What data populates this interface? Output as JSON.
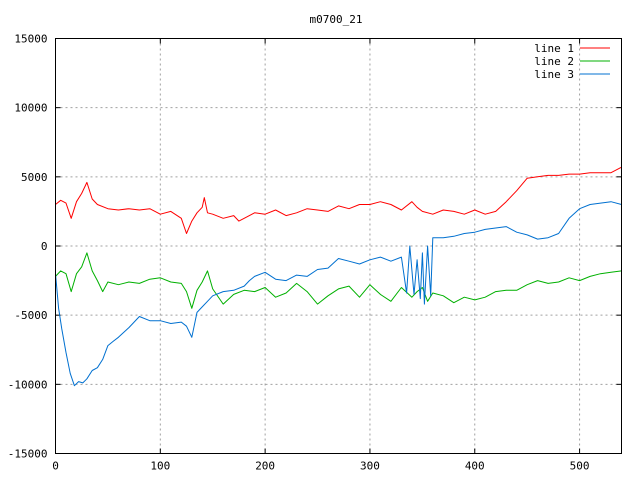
{
  "chart_data": {
    "type": "line",
    "title": "m0700_21",
    "xlabel": "",
    "ylabel": "",
    "xlim": [
      0,
      540
    ],
    "ylim": [
      -15000,
      15000
    ],
    "x_ticks": [
      0,
      100,
      200,
      300,
      400,
      500
    ],
    "y_ticks": [
      -15000,
      -10000,
      -5000,
      0,
      5000,
      10000,
      15000
    ],
    "grid": true,
    "legend_position": "top-right",
    "series": [
      {
        "name": "line 1",
        "color": "#ff0000",
        "x": [
          0,
          5,
          10,
          15,
          20,
          25,
          30,
          35,
          40,
          50,
          60,
          70,
          80,
          90,
          100,
          110,
          120,
          125,
          130,
          135,
          140,
          142,
          145,
          150,
          160,
          170,
          175,
          180,
          190,
          200,
          210,
          220,
          230,
          240,
          250,
          260,
          270,
          280,
          290,
          300,
          310,
          320,
          330,
          340,
          345,
          350,
          360,
          370,
          380,
          390,
          400,
          410,
          420,
          430,
          440,
          450,
          460,
          470,
          480,
          490,
          500,
          510,
          520,
          530,
          540
        ],
        "y": [
          3000,
          3300,
          3100,
          2000,
          3200,
          3800,
          4600,
          3400,
          3000,
          2700,
          2600,
          2700,
          2600,
          2700,
          2300,
          2500,
          2000,
          900,
          1800,
          2400,
          2800,
          3500,
          2400,
          2300,
          2000,
          2200,
          1800,
          2000,
          2400,
          2300,
          2600,
          2200,
          2400,
          2700,
          2600,
          2500,
          2900,
          2700,
          3000,
          3000,
          3200,
          3000,
          2600,
          3200,
          2800,
          2500,
          2300,
          2600,
          2500,
          2300,
          2600,
          2300,
          2500,
          3200,
          4000,
          4900,
          5000,
          5100,
          5100,
          5200,
          5200,
          5300,
          5300,
          5300,
          5700
        ]
      },
      {
        "name": "line 2",
        "color": "#00b000",
        "x": [
          0,
          5,
          10,
          15,
          20,
          25,
          30,
          35,
          40,
          45,
          50,
          60,
          70,
          80,
          90,
          100,
          110,
          120,
          125,
          130,
          135,
          140,
          145,
          150,
          160,
          170,
          180,
          190,
          200,
          210,
          220,
          230,
          240,
          250,
          260,
          270,
          280,
          290,
          300,
          310,
          320,
          330,
          340,
          345,
          350,
          355,
          360,
          370,
          380,
          390,
          400,
          410,
          420,
          430,
          440,
          450,
          460,
          470,
          480,
          490,
          500,
          510,
          520,
          530,
          540
        ],
        "y": [
          -2200,
          -1800,
          -2000,
          -3300,
          -2000,
          -1500,
          -500,
          -1800,
          -2500,
          -3300,
          -2600,
          -2800,
          -2600,
          -2700,
          -2400,
          -2300,
          -2600,
          -2700,
          -3300,
          -4500,
          -3200,
          -2600,
          -1800,
          -3100,
          -4200,
          -3500,
          -3200,
          -3300,
          -3000,
          -3700,
          -3400,
          -2700,
          -3300,
          -4200,
          -3600,
          -3100,
          -2900,
          -3700,
          -2800,
          -3500,
          -4000,
          -3000,
          -3700,
          -3300,
          -3000,
          -4000,
          -3400,
          -3600,
          -4100,
          -3700,
          -3900,
          -3700,
          -3300,
          -3200,
          -3200,
          -2800,
          -2500,
          -2700,
          -2600,
          -2300,
          -2500,
          -2200,
          -2000,
          -1900,
          -1800
        ]
      },
      {
        "name": "line 3",
        "color": "#0070d0",
        "x": [
          0,
          3,
          6,
          10,
          14,
          18,
          22,
          26,
          30,
          35,
          40,
          45,
          50,
          55,
          60,
          70,
          80,
          90,
          100,
          110,
          120,
          125,
          130,
          135,
          140,
          145,
          150,
          160,
          170,
          180,
          185,
          190,
          200,
          210,
          220,
          230,
          240,
          250,
          260,
          270,
          280,
          290,
          300,
          310,
          320,
          330,
          335,
          338,
          342,
          345,
          348,
          350,
          352,
          355,
          358,
          360,
          370,
          380,
          390,
          400,
          410,
          420,
          430,
          440,
          450,
          460,
          470,
          480,
          490,
          500,
          510,
          520,
          530,
          540
        ],
        "y": [
          -2000,
          -4500,
          -6000,
          -7700,
          -9200,
          -10100,
          -9800,
          -9900,
          -9600,
          -9000,
          -8800,
          -8200,
          -7200,
          -6900,
          -6600,
          -5900,
          -5100,
          -5400,
          -5400,
          -5600,
          -5500,
          -5800,
          -6600,
          -4800,
          -4400,
          -4000,
          -3600,
          -3300,
          -3200,
          -2900,
          -2500,
          -2200,
          -1900,
          -2400,
          -2500,
          -2100,
          -2200,
          -1700,
          -1600,
          -900,
          -1100,
          -1300,
          -1000,
          -800,
          -1100,
          -800,
          -3400,
          0,
          -3500,
          -1000,
          -3800,
          -500,
          -4200,
          0,
          -3600,
          600,
          600,
          700,
          900,
          1000,
          1200,
          1300,
          1400,
          1000,
          800,
          500,
          600,
          900,
          2000,
          2700,
          3000,
          3100,
          3200,
          3000
        ]
      }
    ]
  }
}
